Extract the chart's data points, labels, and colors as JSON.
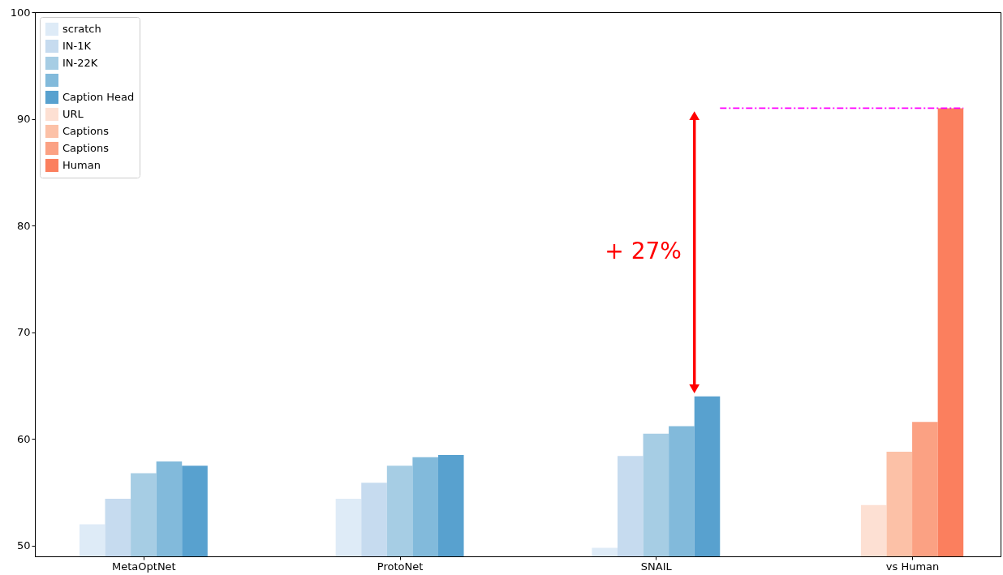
{
  "chart_data": {
    "type": "bar",
    "categories": [
      "MetaOptNet",
      "ProtoNet",
      "SNAIL",
      "vs Human"
    ],
    "series": [
      {
        "name": "scratch",
        "color": "#deebf7",
        "values": [
          52.0,
          54.4,
          49.8,
          null
        ]
      },
      {
        "name": "IN-1K",
        "color": "#c6dbef",
        "values": [
          54.4,
          55.9,
          58.4,
          null
        ]
      },
      {
        "name": "IN-22K",
        "color": "#a6cde4",
        "values": [
          56.8,
          57.5,
          60.5,
          null
        ]
      },
      {
        "color": "#82badb",
        "values": [
          57.9,
          58.3,
          61.2,
          null
        ]
      },
      {
        "name": "Caption Head",
        "color": "#58a1cf",
        "values": [
          57.5,
          58.5,
          64.0,
          null
        ]
      },
      {
        "name": "URL",
        "color": "#fde0d3",
        "values": [
          null,
          null,
          null,
          53.8
        ]
      },
      {
        "name": "Captions",
        "color": "#fcc1a7",
        "values": [
          null,
          null,
          null,
          58.8
        ]
      },
      {
        "name": "Captions",
        "color": "#fba183",
        "values": [
          null,
          null,
          null,
          61.6
        ]
      },
      {
        "name": "Human",
        "color": "#fb7f5e",
        "values": [
          null,
          null,
          null,
          91.0
        ]
      }
    ],
    "ylim": [
      49,
      100
    ],
    "yticks": [
      50,
      60,
      70,
      80,
      90,
      100
    ],
    "grid": false,
    "legend": "top left",
    "annotations": [
      "+ 27%"
    ],
    "ref_lines": [
      {
        "axis": "y",
        "value": 91,
        "color": "#ff00ff",
        "line_style": "dashed"
      }
    ]
  }
}
